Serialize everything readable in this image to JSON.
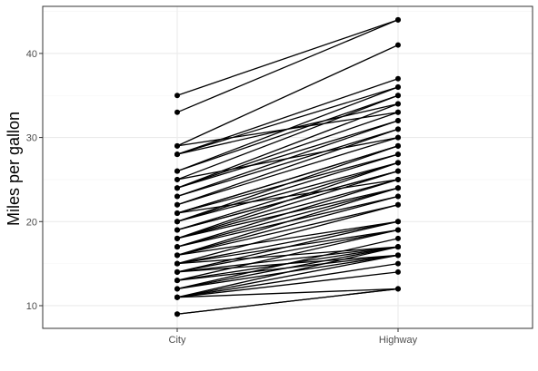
{
  "chart_data": {
    "type": "line",
    "title": "",
    "xlabel": "",
    "ylabel": "Miles per gallon",
    "categories": [
      "City",
      "Highway"
    ],
    "ylim": [
      7.3,
      45.6
    ],
    "yticks": [
      10,
      20,
      30,
      40
    ],
    "grid": true,
    "legend": "none",
    "colors": {
      "line": "#000000",
      "point": "#000000",
      "major_grid": "#ebebeb",
      "minor_grid": "#f5f5f5",
      "panel_border": "#333333",
      "axis_text": "#4d4d4d",
      "axis_title": "#000000"
    },
    "pairs": [
      [
        35,
        44
      ],
      [
        33,
        44
      ],
      [
        29,
        41
      ],
      [
        28,
        37
      ],
      [
        28,
        36
      ],
      [
        26,
        36
      ],
      [
        26,
        35
      ],
      [
        25,
        35
      ],
      [
        24,
        34
      ],
      [
        24,
        33
      ],
      [
        24,
        32
      ],
      [
        23,
        32
      ],
      [
        23,
        31
      ],
      [
        22,
        31
      ],
      [
        22,
        30
      ],
      [
        21,
        29
      ],
      [
        21,
        29
      ],
      [
        21,
        28
      ],
      [
        20,
        29
      ],
      [
        20,
        28
      ],
      [
        20,
        27
      ],
      [
        19,
        27
      ],
      [
        19,
        26
      ],
      [
        19,
        26
      ],
      [
        18,
        27
      ],
      [
        18,
        26
      ],
      [
        18,
        25
      ],
      [
        18,
        24
      ],
      [
        17,
        25
      ],
      [
        17,
        24
      ],
      [
        17,
        23
      ],
      [
        16,
        24
      ],
      [
        16,
        23
      ],
      [
        16,
        22
      ],
      [
        16,
        20
      ],
      [
        15,
        22
      ],
      [
        15,
        20
      ],
      [
        15,
        19
      ],
      [
        15,
        17
      ],
      [
        14,
        20
      ],
      [
        14,
        19
      ],
      [
        14,
        17
      ],
      [
        14,
        16
      ],
      [
        13,
        19
      ],
      [
        13,
        17
      ],
      [
        13,
        16
      ],
      [
        12,
        18
      ],
      [
        12,
        17
      ],
      [
        12,
        16
      ],
      [
        11,
        17
      ],
      [
        11,
        16
      ],
      [
        11,
        15
      ],
      [
        11,
        14
      ],
      [
        11,
        12
      ],
      [
        9,
        12
      ],
      [
        9,
        12
      ],
      [
        29,
        33
      ],
      [
        28,
        34
      ],
      [
        25,
        30
      ],
      [
        21,
        25
      ]
    ]
  }
}
